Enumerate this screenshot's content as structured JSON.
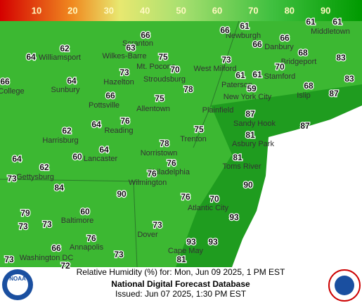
{
  "legend": {
    "labels": [
      10,
      20,
      30,
      40,
      50,
      60,
      70,
      80,
      90
    ]
  },
  "cities": [
    "Scranton",
    "Newburgh",
    "Middletown",
    "Williamsport",
    "Wilkes-Barre",
    "Danbury",
    "Bridgeport",
    "Hazelton",
    "Mt. Pocono",
    "West Milford",
    "Stamford",
    "Stroudsburg",
    "Paterson",
    "New York City",
    "Islip",
    "Sunbury",
    "College",
    "Pottsville",
    "Allentown",
    "Plainfield",
    "Sandy Hook",
    "Reading",
    "Harrisburg",
    "Trenton",
    "Asbury Park",
    "Norristown",
    "Lancaster",
    "Toms River",
    "Philadelphia",
    "Gettysburg",
    "Wilmington",
    "Atlantic City",
    "Baltimore",
    "Dover",
    "Annapolis",
    "Washington DC",
    "Cape May"
  ],
  "values": [
    66,
    61,
    61,
    61,
    66,
    66,
    66,
    62,
    63,
    75,
    64,
    73,
    68,
    83,
    70,
    70,
    61,
    61,
    73,
    64,
    78,
    59,
    68,
    83,
    66,
    66,
    75,
    87,
    76,
    64,
    87,
    87,
    75,
    62,
    81,
    78,
    64,
    60,
    81,
    64,
    76,
    62,
    76,
    73,
    90,
    84,
    90,
    76,
    70,
    79,
    60,
    93,
    73,
    73,
    73,
    76,
    93,
    93,
    66,
    73,
    73,
    81,
    72
  ],
  "footer": {
    "line1": "Relative Humidity (%) for: Mon, Jun 09 2025, 1 PM EST",
    "line2": "National Digital Forecast Database",
    "line3": "Issued: Jun 07 2025, 1:30 PM EST",
    "logo": "NOAA"
  }
}
